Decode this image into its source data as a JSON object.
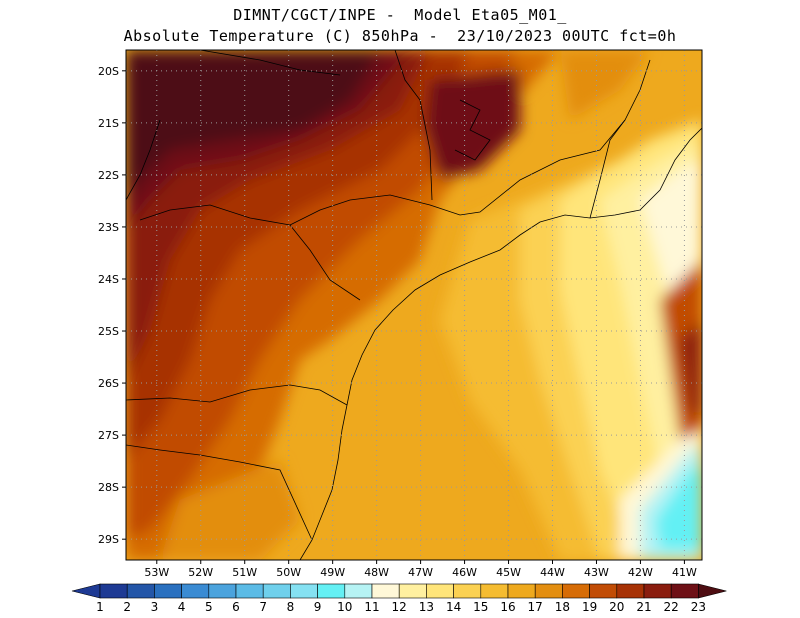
{
  "title": {
    "line1": "DIMNT/CGCT/INPE -  Model Eta05_M01_",
    "line2": "Absolute Temperature (C) 850hPa -  23/10/2023 00UTC fct=0h"
  },
  "map": {
    "lat_labels": [
      "20S",
      "21S",
      "22S",
      "23S",
      "24S",
      "25S",
      "26S",
      "27S",
      "28S",
      "29S"
    ],
    "lon_labels": [
      "53W",
      "52W",
      "51W",
      "50W",
      "49W",
      "48W",
      "47W",
      "46W",
      "45W",
      "44W",
      "43W",
      "42W",
      "41W"
    ],
    "lat_values": [
      -20,
      -21,
      -22,
      -23,
      -24,
      -25,
      -26,
      -27,
      -28,
      -29
    ],
    "lon_values": [
      -53,
      -52,
      -51,
      -50,
      -49,
      -48,
      -47,
      -46,
      -45,
      -44,
      -43,
      -42,
      -41
    ],
    "lat_range": [
      -29.4,
      -19.6
    ],
    "lon_range": [
      -53.7,
      -40.6
    ],
    "grid_style": "dotted",
    "gridlines": true
  },
  "colorbar": {
    "labels": [
      "1",
      "2",
      "3",
      "4",
      "5",
      "6",
      "7",
      "8",
      "9",
      "10",
      "11",
      "12",
      "13",
      "14",
      "15",
      "16",
      "17",
      "18",
      "19",
      "20",
      "21",
      "22",
      "23"
    ],
    "colors": [
      "#1e3a94",
      "#2356a8",
      "#2a70bf",
      "#3a8bd3",
      "#4ba3dd",
      "#5bbbe6",
      "#6fd0ec",
      "#85e1f2",
      "#64f0f4",
      "#b6f3f4",
      "#fff8d8",
      "#fff0a0",
      "#ffe57a",
      "#fbd152",
      "#f5bc31",
      "#eea91e",
      "#e38e10",
      "#d66c06",
      "#c14c05",
      "#a73205",
      "#8a1d0e",
      "#6e1016",
      "#4e0d12"
    ]
  }
}
